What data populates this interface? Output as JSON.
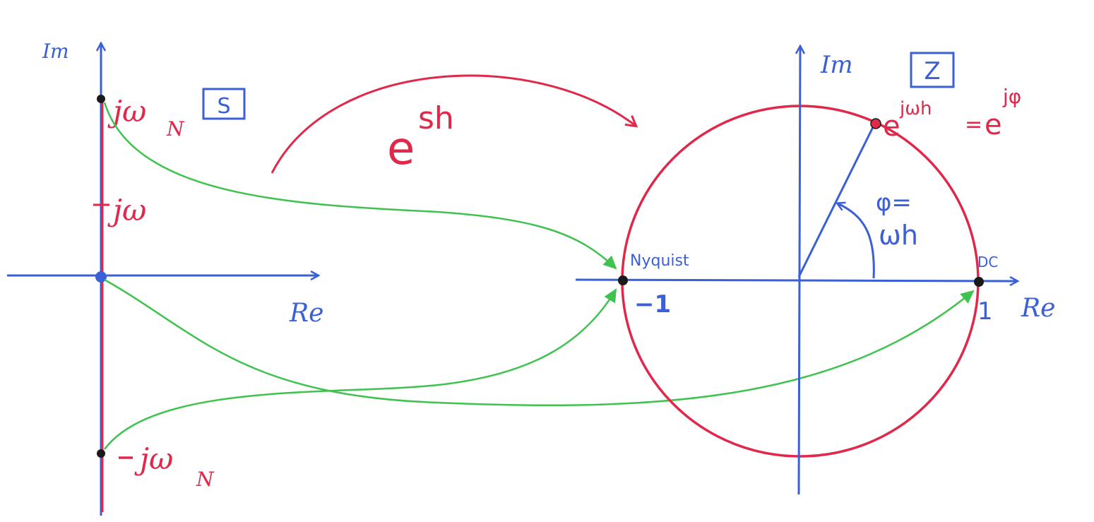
{
  "colors": {
    "axis": "#3a5fd6",
    "circle": "#e0284a",
    "mapping": "#3fc24f",
    "point": "#1a1a1a",
    "background": "#ffffff"
  },
  "s_plane": {
    "im_label": "Im",
    "re_label": "Re",
    "plane_tag": "S",
    "jwN_j": "jω",
    "jwN_sub": "N",
    "jw": "jω",
    "neg_jwN_j": "jω",
    "neg_jwN_sub": "N"
  },
  "mapping": {
    "e": "e",
    "exponent": "sh"
  },
  "z_plane": {
    "im_label": "Im",
    "re_label": "Re",
    "plane_tag": "Z",
    "point_left_top": "Nyquist",
    "point_left_bottom": "−1",
    "point_right_top": "DC",
    "point_right_bottom": "1",
    "unit_point_e1": "e",
    "unit_point_exp1": "jωh",
    "unit_point_eq": "=",
    "unit_point_e2": "e",
    "unit_point_exp2": "jφ",
    "angle_line1": "φ=",
    "angle_line2": "ωh"
  }
}
